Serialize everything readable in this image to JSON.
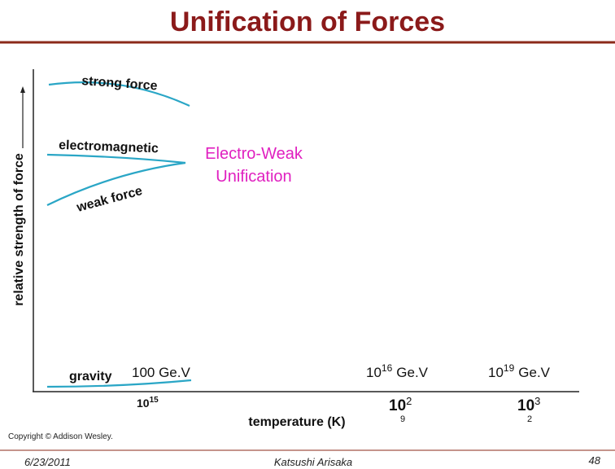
{
  "header": {
    "title": "Unification of Forces"
  },
  "diagram": {
    "y_axis_label": "relative strength of force",
    "x_axis_label": "temperature (K)",
    "curves": {
      "strong": "strong force",
      "electromagnetic": "electromagnetic",
      "weak": "weak force",
      "gravity": "gravity"
    },
    "annotation": {
      "line1": "Electro-Weak",
      "line2": "Unification"
    },
    "energies": [
      {
        "text": "100 Ge.V"
      },
      {
        "base": "10",
        "exp": "16",
        "unit": "Ge.V"
      },
      {
        "base": "10",
        "exp": "19",
        "unit": "Ge.V"
      }
    ],
    "temperatures": [
      {
        "base": "10",
        "exp": "15"
      },
      {
        "base": "10",
        "exp": "2",
        "sub": "9"
      },
      {
        "base": "10",
        "exp": "3",
        "sub": "2"
      }
    ],
    "copyright": "Copyright © Addison Wesley."
  },
  "footer": {
    "date": "6/23/2011",
    "author": "Katsushi Arisaka",
    "page": "48"
  }
}
